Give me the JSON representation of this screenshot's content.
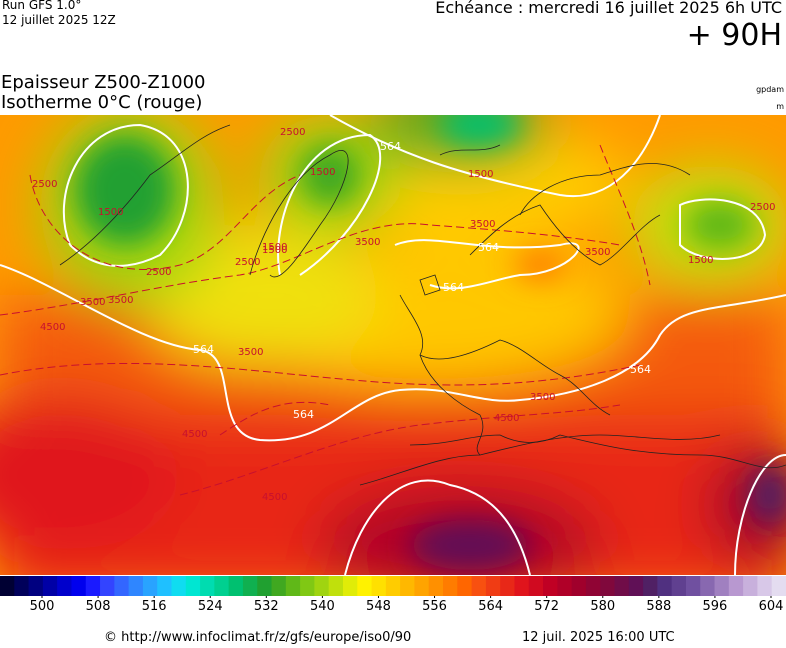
{
  "header": {
    "run": "Run GFS 1.0°",
    "run_date": "12 juillet 2025 12Z",
    "echeance": "Echéance : mercredi 16 juillet 2025 6h UTC",
    "lead": "+ 90H"
  },
  "map": {
    "title": "Epaisseur Z500-Z1000",
    "subtitle": "Isotherme 0°C (rouge)",
    "unit_thickness": "gpdam",
    "unit_isotherm": "m",
    "contour_labels": [
      "2500",
      "1500",
      "2500",
      "1500",
      "2500",
      "1500",
      "3500",
      "564",
      "3500",
      "564",
      "3500",
      "564",
      "4500",
      "4500",
      "564",
      "3500",
      "4500",
      "3500",
      "1500",
      "2500",
      "3500",
      "1500",
      "564",
      "1500",
      "3500",
      "564",
      "2500",
      "4500"
    ]
  },
  "legend": {
    "ticks": [
      500,
      508,
      516,
      524,
      532,
      540,
      548,
      556,
      564,
      572,
      580,
      588,
      596,
      604
    ],
    "colors": [
      "#000033",
      "#00005a",
      "#000080",
      "#0000a6",
      "#0000cc",
      "#0000ee",
      "#1a1aff",
      "#3344ff",
      "#3366ff",
      "#2f86ff",
      "#29a3ff",
      "#1fc0ff",
      "#10dcf0",
      "#00e6d2",
      "#00dcb0",
      "#00d090",
      "#00c070",
      "#10b050",
      "#20a030",
      "#40a820",
      "#60b818",
      "#80c814",
      "#a0d410",
      "#c0e00c",
      "#e0ec08",
      "#fff200",
      "#ffe000",
      "#ffcc00",
      "#ffb800",
      "#ffa400",
      "#ff9000",
      "#ff7c00",
      "#ff6600",
      "#f85010",
      "#f03c14",
      "#e82818",
      "#e0141c",
      "#d00a20",
      "#c00024",
      "#b00028",
      "#a0002c",
      "#900434",
      "#80083c",
      "#700c48",
      "#601056",
      "#502064",
      "#503080",
      "#604090",
      "#7050a0",
      "#8868b0",
      "#a080c0",
      "#b898d0",
      "#c8b0dc",
      "#d8c8e8",
      "#e4dcf0"
    ]
  },
  "footer": {
    "url": "© http://www.infoclimat.fr/z/gfs/europe/iso0/90",
    "timestamp": "12 juil. 2025 16:00 UTC"
  }
}
